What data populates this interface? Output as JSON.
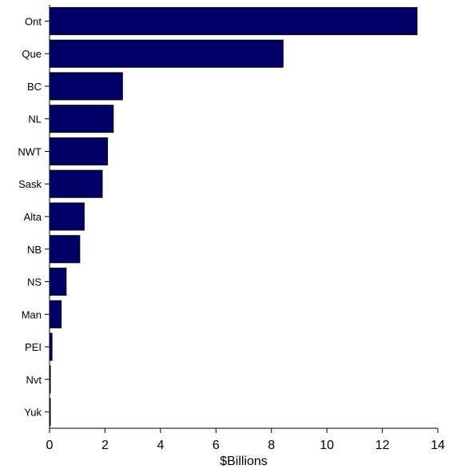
{
  "chart_data": {
    "type": "bar",
    "orientation": "horizontal",
    "categories": [
      "Ont",
      "Que",
      "BC",
      "NL",
      "NWT",
      "Sask",
      "Alta",
      "NB",
      "NS",
      "Man",
      "PEI",
      "Nvt",
      "Yuk"
    ],
    "values": [
      13.25,
      8.42,
      2.63,
      2.3,
      2.09,
      1.9,
      1.25,
      1.09,
      0.6,
      0.42,
      0.09,
      0.03,
      0.01
    ],
    "xlabel": "$Billions",
    "ylabel": "",
    "title": "",
    "xlim": [
      0,
      14
    ],
    "xticks": [
      "0",
      "2",
      "4",
      "6",
      "8",
      "10",
      "12",
      "14"
    ],
    "grid": false,
    "legend": "none",
    "bar_color": "#000066"
  }
}
